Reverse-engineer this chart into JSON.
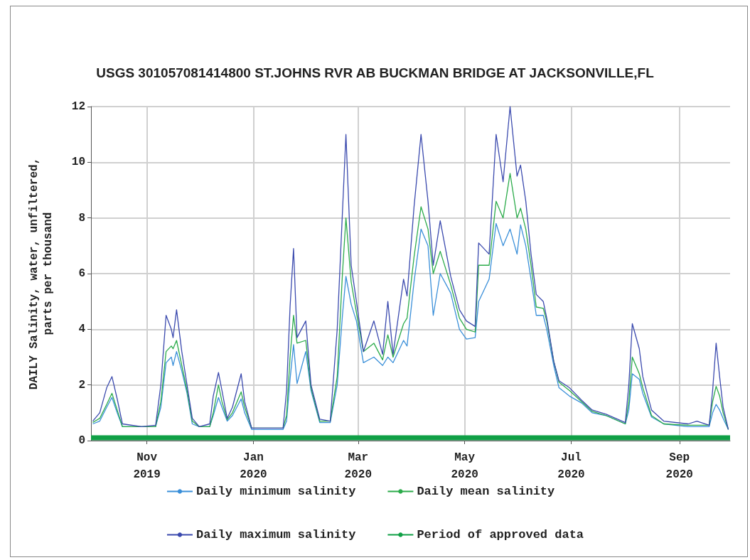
{
  "chart_data": {
    "type": "line",
    "title": "USGS 301057081414800 ST.JOHNS RVR AB BUCKMAN BRIDGE AT JACKSONVILLE,FL",
    "ylabel": "DAILY Salinity, water, unfiltered,\nparts per thousand",
    "x": [
      "2019-10-01",
      "2019-10-05",
      "2019-10-09",
      "2019-10-12",
      "2019-10-15",
      "2019-10-18",
      "2019-10-29",
      "2019-11-06",
      "2019-11-09",
      "2019-11-12",
      "2019-11-15",
      "2019-11-16",
      "2019-11-18",
      "2019-11-21",
      "2019-11-24",
      "2019-11-27",
      "2019-12-01",
      "2019-12-07",
      "2019-12-09",
      "2019-12-12",
      "2019-12-14",
      "2019-12-17",
      "2019-12-20",
      "2019-12-25",
      "2019-12-27",
      "2019-12-31",
      "2020-01-18",
      "2020-01-20",
      "2020-01-22",
      "2020-01-24",
      "2020-01-26",
      "2020-01-31",
      "2020-02-03",
      "2020-02-08",
      "2020-02-14",
      "2020-02-18",
      "2020-02-21",
      "2020-02-23",
      "2020-02-26",
      "2020-02-29",
      "2020-03-04",
      "2020-03-10",
      "2020-03-15",
      "2020-03-18",
      "2020-03-21",
      "2020-03-27",
      "2020-03-29",
      "2020-04-02",
      "2020-04-06",
      "2020-04-10",
      "2020-04-13",
      "2020-04-17",
      "2020-04-23",
      "2020-04-28",
      "2020-05-02",
      "2020-05-07",
      "2020-05-09",
      "2020-05-15",
      "2020-05-19",
      "2020-05-23",
      "2020-05-27",
      "2020-05-31",
      "2020-06-02",
      "2020-06-05",
      "2020-06-08",
      "2020-06-11",
      "2020-06-15",
      "2020-06-17",
      "2020-06-21",
      "2020-06-24",
      "2020-06-30",
      "2020-07-07",
      "2020-07-13",
      "2020-07-21",
      "2020-08-01",
      "2020-08-03",
      "2020-08-05",
      "2020-08-09",
      "2020-08-11",
      "2020-08-16",
      "2020-08-23",
      "2020-09-06",
      "2020-09-11",
      "2020-09-18",
      "2020-09-20",
      "2020-09-22",
      "2020-09-24",
      "2020-09-26",
      "2020-09-29"
    ],
    "series": [
      {
        "name": "Daily minimum salinity",
        "color": "#3a8fd9",
        "values": [
          0.6,
          0.7,
          1.2,
          1.55,
          1.0,
          0.5,
          0.5,
          0.5,
          1.2,
          2.8,
          3.0,
          2.7,
          3.2,
          2.5,
          1.7,
          0.6,
          0.5,
          0.5,
          0.9,
          1.55,
          1.2,
          0.7,
          0.9,
          1.5,
          1.0,
          0.4,
          0.4,
          0.7,
          2.2,
          3.45,
          2.05,
          3.2,
          1.8,
          0.65,
          0.65,
          2.0,
          4.5,
          5.9,
          4.9,
          4.3,
          2.8,
          3.0,
          2.7,
          3.0,
          2.8,
          3.6,
          3.4,
          5.7,
          7.6,
          7.0,
          4.5,
          6.0,
          5.3,
          4.0,
          3.65,
          3.7,
          5.0,
          5.8,
          7.8,
          7.0,
          7.6,
          6.7,
          7.75,
          7.0,
          5.8,
          4.5,
          4.5,
          4.0,
          2.7,
          1.9,
          1.6,
          1.35,
          1.0,
          0.9,
          0.6,
          1.1,
          2.4,
          2.2,
          1.7,
          0.85,
          0.6,
          0.5,
          0.5,
          0.5,
          1.0,
          1.3,
          1.1,
          0.8,
          0.4
        ]
      },
      {
        "name": "Daily mean salinity",
        "color": "#2bab4a",
        "values": [
          0.65,
          0.8,
          1.3,
          1.7,
          1.1,
          0.5,
          0.5,
          0.5,
          1.4,
          3.2,
          3.4,
          3.3,
          3.6,
          2.7,
          1.8,
          0.7,
          0.5,
          0.5,
          1.0,
          2.0,
          1.4,
          0.75,
          1.0,
          1.75,
          1.2,
          0.45,
          0.45,
          0.9,
          3.0,
          4.5,
          3.5,
          3.6,
          1.9,
          0.7,
          0.7,
          2.3,
          6.0,
          8.0,
          5.7,
          4.6,
          3.2,
          3.5,
          2.9,
          3.8,
          3.0,
          4.2,
          4.4,
          6.6,
          8.4,
          7.6,
          6.0,
          6.8,
          5.6,
          4.4,
          4.0,
          3.9,
          6.3,
          6.3,
          8.6,
          8.0,
          9.6,
          8.0,
          8.35,
          7.6,
          6.3,
          4.8,
          4.75,
          4.3,
          2.85,
          2.1,
          1.8,
          1.4,
          1.05,
          0.9,
          0.6,
          1.4,
          3.0,
          2.4,
          1.9,
          0.9,
          0.6,
          0.55,
          0.55,
          0.55,
          1.4,
          1.95,
          1.6,
          1.0,
          0.4
        ]
      },
      {
        "name": "Daily maximum salinity",
        "color": "#3b4aae",
        "values": [
          0.7,
          1.0,
          1.9,
          2.3,
          1.5,
          0.6,
          0.5,
          0.55,
          2.0,
          4.5,
          4.0,
          3.7,
          4.7,
          3.2,
          2.0,
          0.8,
          0.5,
          0.6,
          1.6,
          2.45,
          1.8,
          0.8,
          1.2,
          2.4,
          1.4,
          0.45,
          0.45,
          1.8,
          4.8,
          6.9,
          3.7,
          4.3,
          2.0,
          0.77,
          0.7,
          4.0,
          8.2,
          11.0,
          6.3,
          5.0,
          3.2,
          4.3,
          3.1,
          5.0,
          3.1,
          5.8,
          5.2,
          8.4,
          11.0,
          8.6,
          6.3,
          7.9,
          5.9,
          4.7,
          4.3,
          4.1,
          7.1,
          6.7,
          11.0,
          9.3,
          12.0,
          9.5,
          9.9,
          8.6,
          6.7,
          5.25,
          5.0,
          4.4,
          2.85,
          2.15,
          1.9,
          1.45,
          1.1,
          0.95,
          0.65,
          2.0,
          4.2,
          3.3,
          2.3,
          1.1,
          0.7,
          0.6,
          0.7,
          0.55,
          1.8,
          3.5,
          2.3,
          1.2,
          0.4
        ]
      },
      {
        "name": "Period of approved data",
        "color": "#10a046",
        "x": [
          "2019-09-30",
          "2020-09-30"
        ],
        "values": [
          0.1,
          0.1
        ]
      }
    ],
    "xlim": [
      "2019-09-30",
      "2020-09-30"
    ],
    "xticks": [
      {
        "value": "2019-11-01",
        "label": "Nov\n2019"
      },
      {
        "value": "2020-01-01",
        "label": "Jan\n2020"
      },
      {
        "value": "2020-03-01",
        "label": "Mar\n2020"
      },
      {
        "value": "2020-05-01",
        "label": "May\n2020"
      },
      {
        "value": "2020-07-01",
        "label": "Jul\n2020"
      },
      {
        "value": "2020-09-01",
        "label": "Sep\n2020"
      }
    ],
    "ylim": [
      0,
      12
    ],
    "yticks": [
      0,
      2,
      4,
      6,
      8,
      10,
      12
    ],
    "grid": true,
    "legend": "bottom",
    "marker": "none",
    "line_style": "solid"
  }
}
